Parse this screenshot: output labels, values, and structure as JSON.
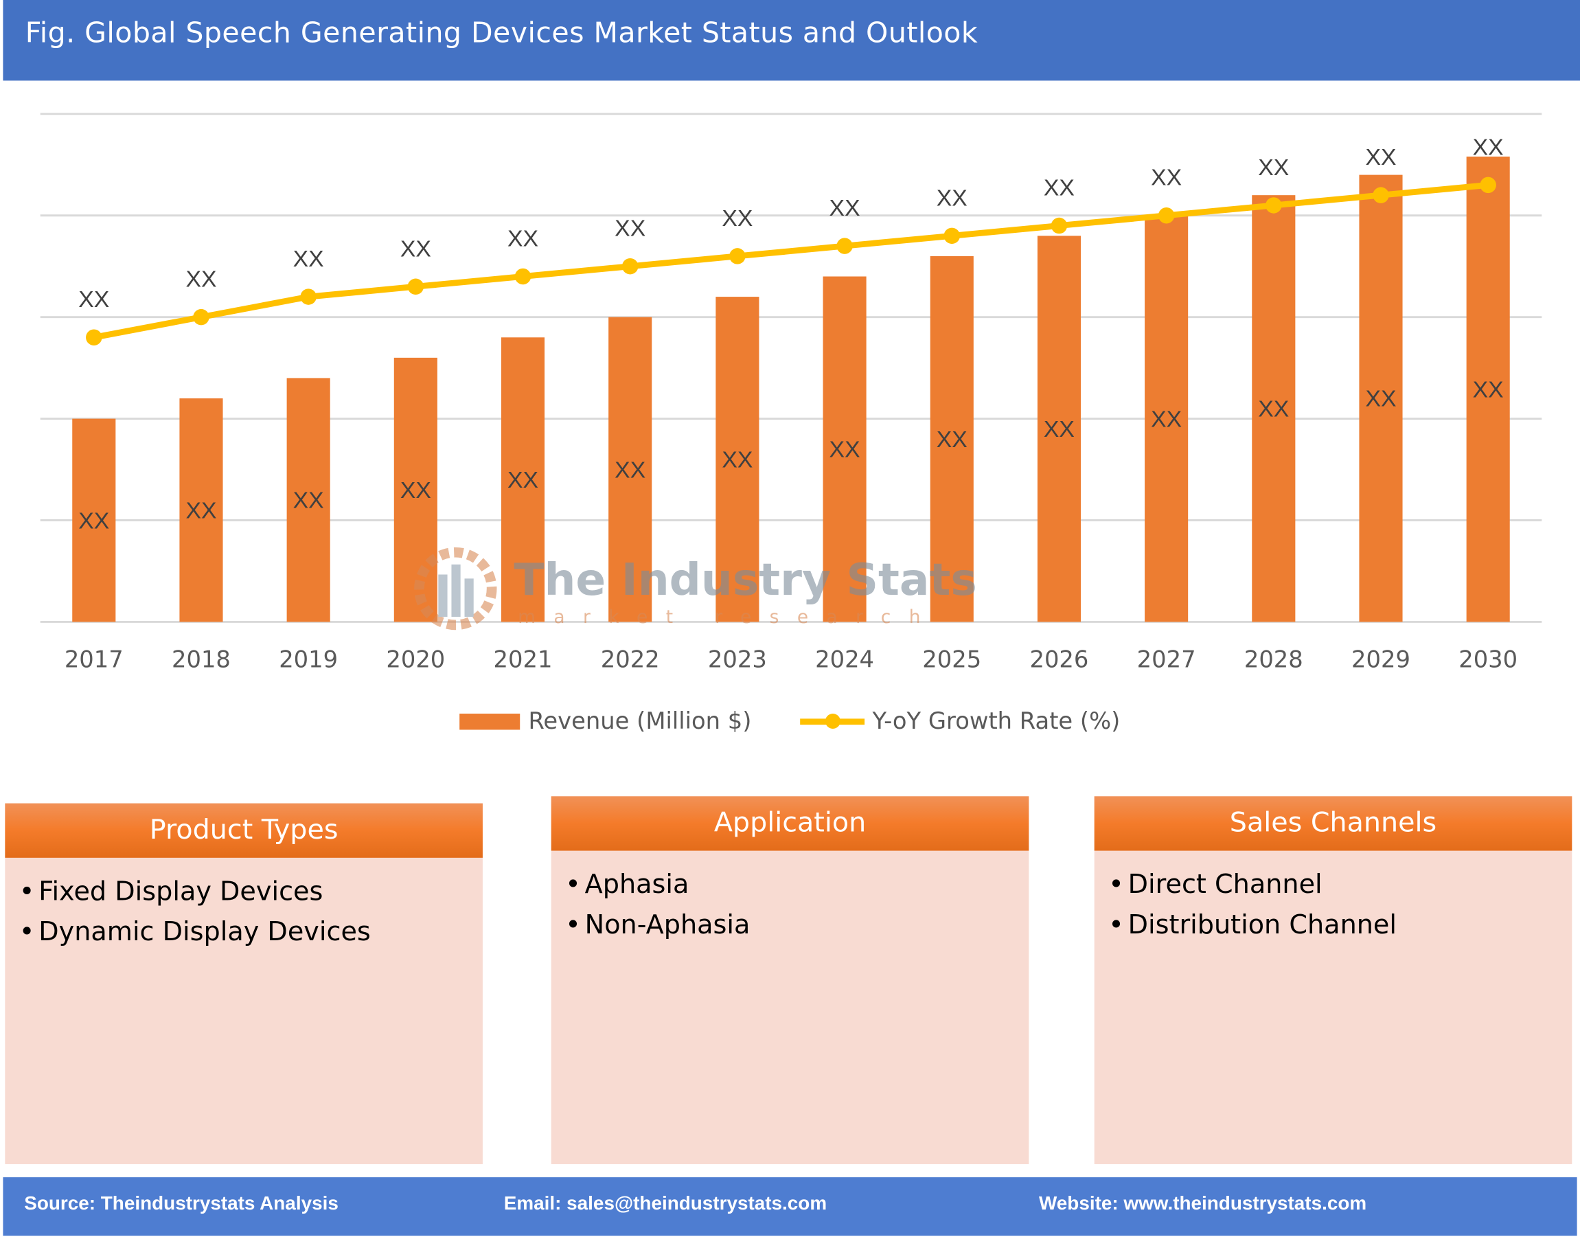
{
  "title": "Fig. Global Speech Generating Devices Market Status and Outlook",
  "chart_data": {
    "type": "bar+line",
    "title": "",
    "xlabel": "",
    "ylabel": "",
    "categories": [
      "2017",
      "2018",
      "2019",
      "2020",
      "2021",
      "2022",
      "2023",
      "2024",
      "2025",
      "2026",
      "2027",
      "2028",
      "2029",
      "2030"
    ],
    "ylim": [
      0,
      5
    ],
    "grid": true,
    "legend_position": "bottom",
    "series": [
      {
        "name": "Revenue (Million $)",
        "type": "bar",
        "color": "#ed7d31",
        "values": [
          2.0,
          2.2,
          2.4,
          2.6,
          2.8,
          3.0,
          3.2,
          3.4,
          3.6,
          3.8,
          4.0,
          4.2,
          4.4,
          4.58
        ],
        "labels": [
          "XX",
          "XX",
          "XX",
          "XX",
          "XX",
          "XX",
          "XX",
          "XX",
          "XX",
          "XX",
          "XX",
          "XX",
          "XX",
          "XX"
        ]
      },
      {
        "name": "Y-oY Growth Rate (%)",
        "type": "line",
        "color": "#ffc000",
        "values": [
          2.8,
          3.0,
          3.2,
          3.3,
          3.4,
          3.5,
          3.6,
          3.7,
          3.8,
          3.9,
          4.0,
          4.1,
          4.2,
          4.3
        ],
        "labels": [
          "XX",
          "XX",
          "XX",
          "XX",
          "XX",
          "XX",
          "XX",
          "XX",
          "XX",
          "XX",
          "XX",
          "XX",
          "XX",
          "XX"
        ]
      }
    ]
  },
  "watermark": {
    "name": "The Industry Stats",
    "tagline": "market research"
  },
  "panels": [
    {
      "title": "Product Types",
      "items": [
        "Fixed Display Devices",
        "Dynamic Display Devices"
      ]
    },
    {
      "title": "Application",
      "items": [
        "Aphasia",
        "Non-Aphasia"
      ]
    },
    {
      "title": "Sales Channels",
      "items": [
        "Direct Channel",
        "Distribution Channel"
      ]
    }
  ],
  "footer": {
    "source": "Source: Theindustrystats Analysis",
    "email": "Email: sales@theindustrystats.com",
    "website": "Website: www.theindustrystats.com"
  }
}
